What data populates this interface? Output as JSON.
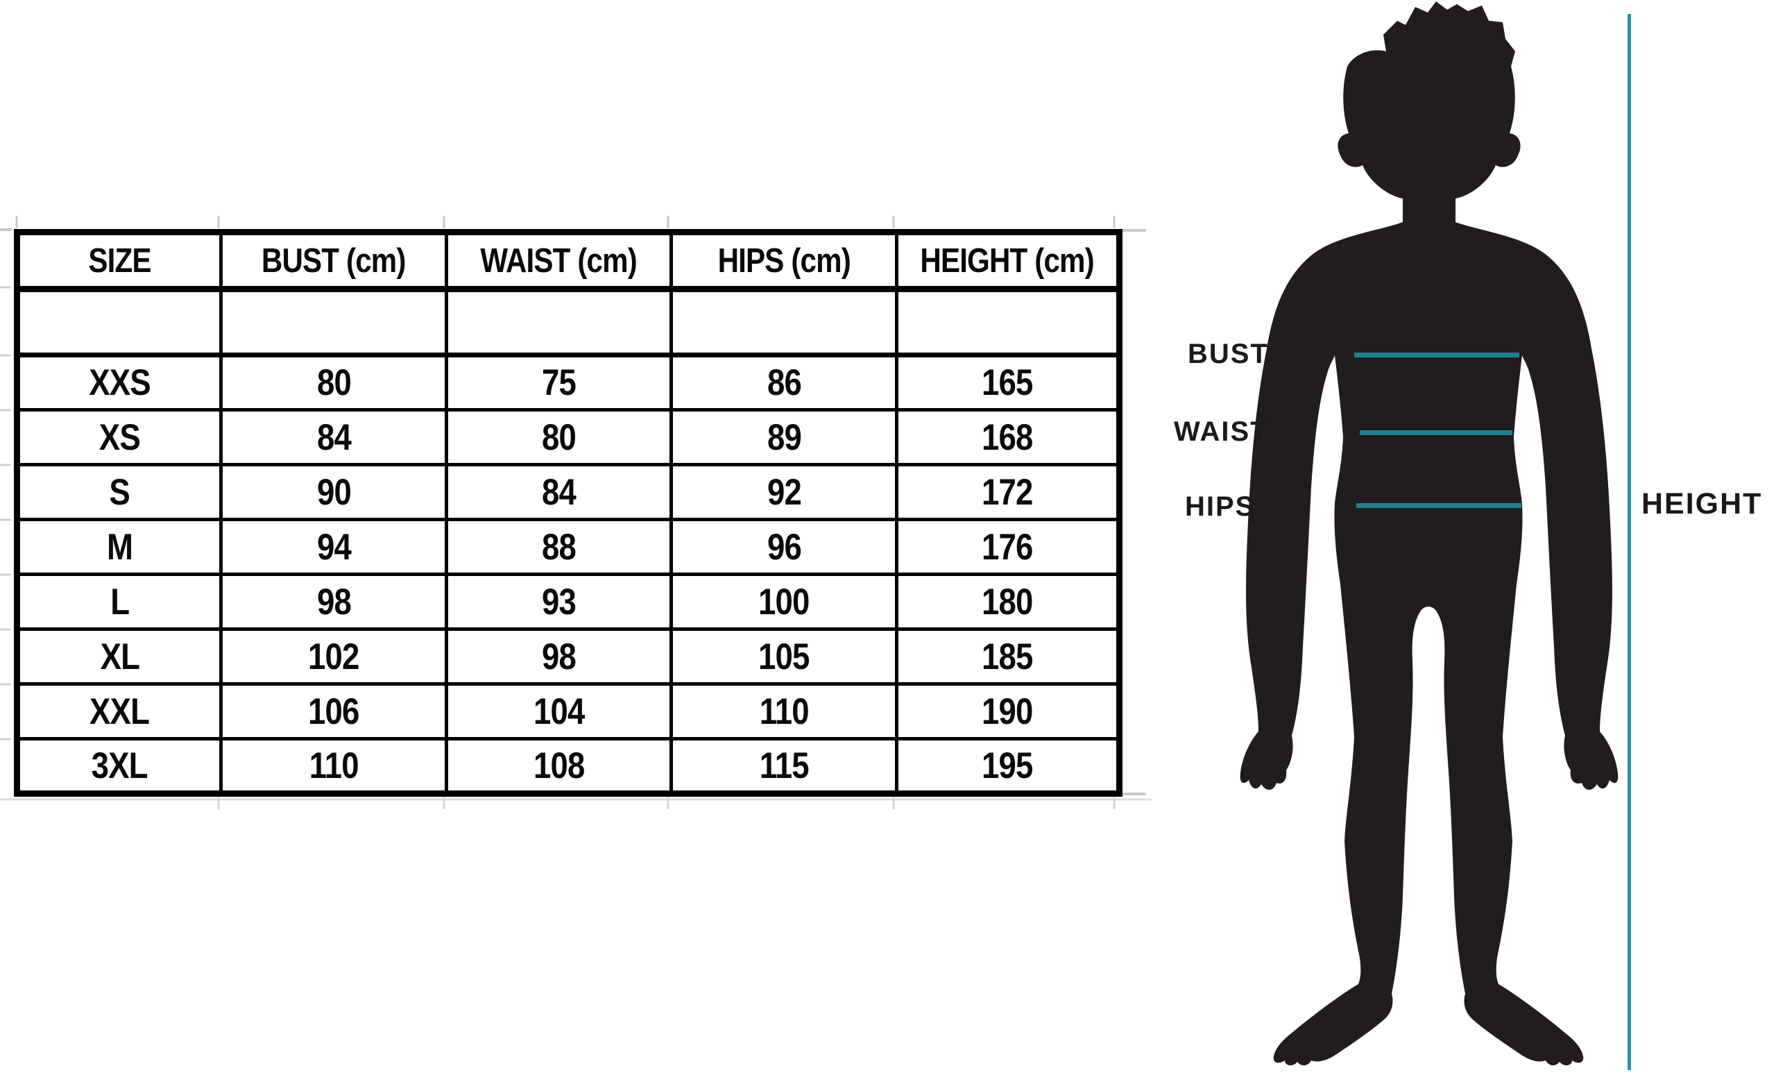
{
  "table": {
    "columns": [
      "SIZE",
      "BUST (cm)",
      "WAIST (cm)",
      "HIPS (cm)",
      "HEIGHT (cm)"
    ],
    "spacer_row": [
      "",
      "",
      "",
      "",
      ""
    ],
    "rows": [
      [
        "XXS",
        "80",
        "75",
        "86",
        "165"
      ],
      [
        "XS",
        "84",
        "80",
        "89",
        "168"
      ],
      [
        "S",
        "90",
        "84",
        "92",
        "172"
      ],
      [
        "M",
        "94",
        "88",
        "96",
        "176"
      ],
      [
        "L",
        "98",
        "93",
        "100",
        "180"
      ],
      [
        "XL",
        "102",
        "98",
        "105",
        "185"
      ],
      [
        "XXL",
        "106",
        "104",
        "110",
        "190"
      ],
      [
        "3XL",
        "110",
        "108",
        "115",
        "195"
      ]
    ]
  },
  "figure": {
    "labels": {
      "bust": "BUST",
      "waist": "WAIST",
      "hips": "HIPS",
      "height": "HEIGHT"
    }
  },
  "colors": {
    "measure_line": "#1f8090",
    "height_line": "#2793a5",
    "silhouette": "#211d1e",
    "table_border": "#000000",
    "gridline": "#c9c9c9"
  }
}
